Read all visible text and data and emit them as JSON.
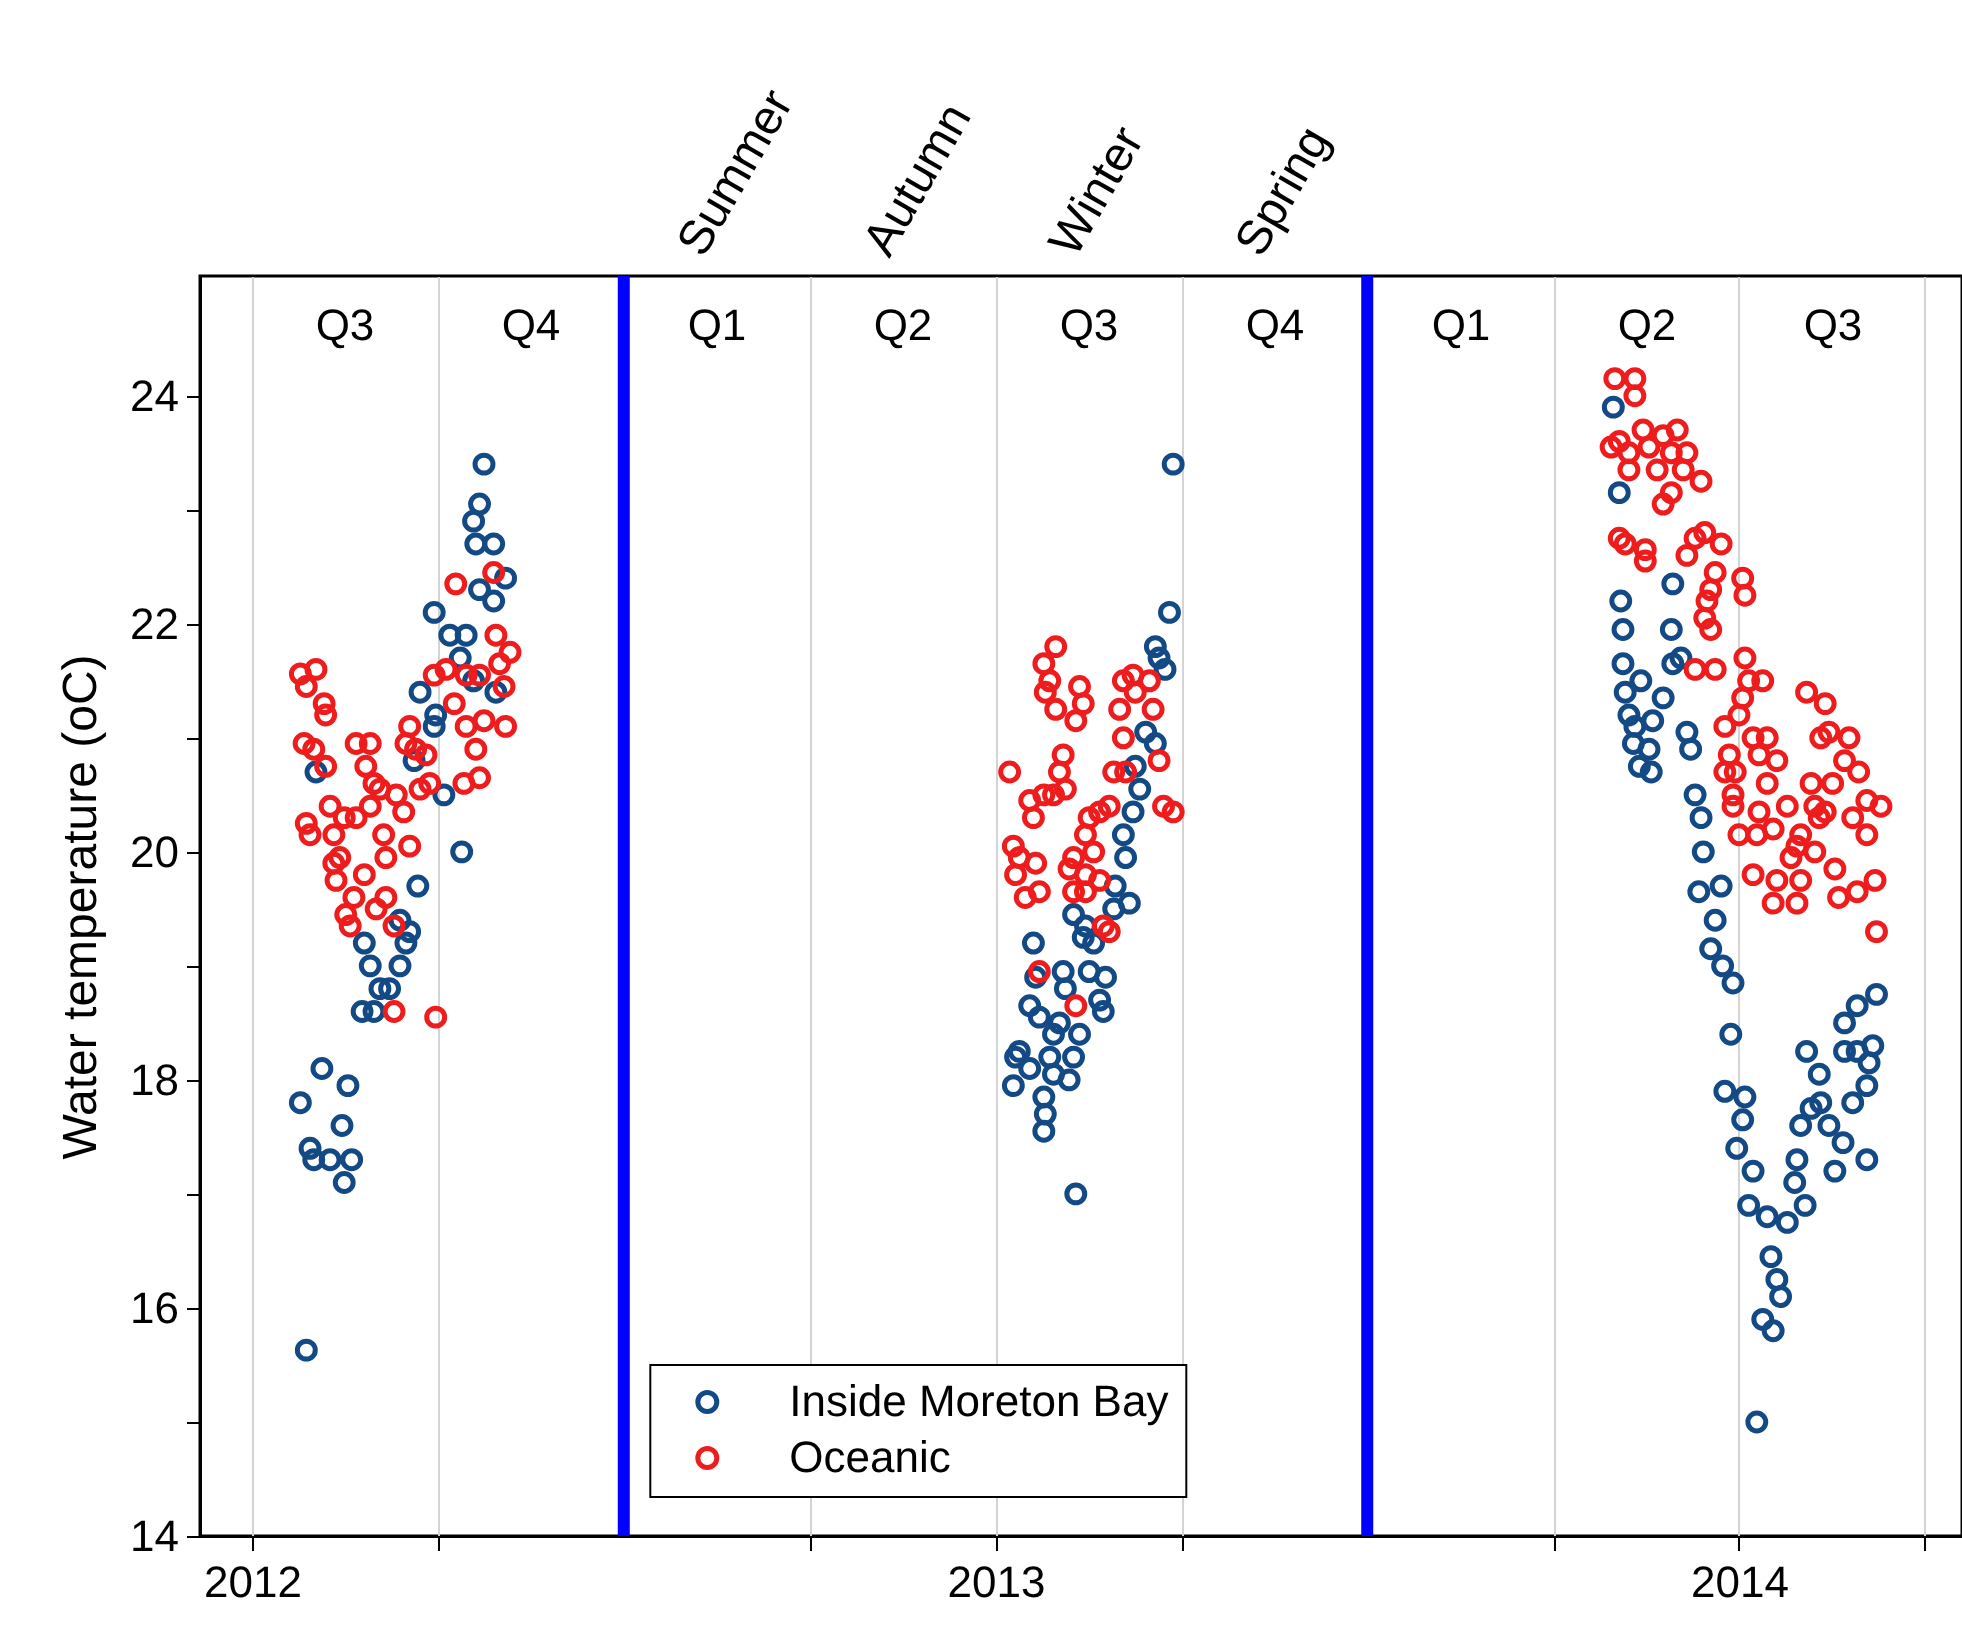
{
  "chart_data": {
    "type": "scatter",
    "ylabel": "Water temperature (oC)",
    "xlim": [
      2011.93,
      2014.3
    ],
    "ylim": [
      14,
      25.05
    ],
    "xticks": [
      2012,
      {
        "value": 2012.25,
        "label": null
      },
      {
        "value": 2012.75,
        "label": null
      },
      2013,
      {
        "value": 2013.25,
        "label": null
      },
      {
        "value": 2013.75,
        "label": null
      },
      2014,
      {
        "value": 2014.25,
        "label": null
      }
    ],
    "yticks": [
      14,
      {
        "value": 15,
        "label": null
      },
      16,
      {
        "value": 17,
        "label": null
      },
      18,
      {
        "value": 19,
        "label": null
      },
      20,
      {
        "value": 21,
        "label": null
      },
      22,
      {
        "value": 23,
        "label": null
      },
      24
    ],
    "grid": "x",
    "legend": "bottom",
    "marker": "circle",
    "ref_lines": [
      {
        "axis": "x",
        "value": 2012.5,
        "color": "#0000ff"
      },
      {
        "axis": "x",
        "value": 2013.5,
        "color": "#0000ff"
      }
    ],
    "annotations": [
      "Summer",
      "Autumn",
      "Winter",
      "Spring",
      "Q3",
      "Q4",
      "Q1",
      "Q2",
      "Q3",
      "Q4",
      "Q1",
      "Q2",
      "Q3"
    ],
    "series": [
      {
        "name": "Inside Moreton Bay",
        "color": "#134a85",
        "x": [
          2012.073,
          2012.065,
          2012.094,
          2012.129,
          2012.078,
          2012.083,
          2012.105,
          2012.124,
          2012.134,
          2012.121,
          2012.086,
          2012.151,
          2012.159,
          2012.172,
          2012.148,
          2012.164,
          2012.185,
          2012.199,
          2012.207,
          2012.199,
          2012.212,
          2012.223,
          2012.282,
          2012.226,
          2012.247,
          2012.245,
          2012.218,
          2012.258,
          2012.245,
          2012.266,
          2012.288,
          2012.28,
          2012.306,
          2012.325,
          2012.341,
          2012.312,
          2012.306,
          2012.298,
          2012.301,
          2012.325,
          2012.328,
          2012.298,
          2013.239,
          2013.234,
          2013.215,
          2013.22,
          2013.228,
          2013.202,
          2013.215,
          2013.188,
          2013.194,
          2013.185,
          2013.172,
          2013.175,
          2013.161,
          2013.18,
          2013.159,
          2013.105,
          2013.121,
          2013.118,
          2013.132,
          2013.051,
          2013.054,
          2013.091,
          2013.094,
          2013.126,
          2013.148,
          2013.14,
          2013.145,
          2013.046,
          2013.059,
          2013.086,
          2013.078,
          2013.113,
          2013.032,
          2013.027,
          2013.046,
          2013.073,
          2013.078,
          2013.105,
          2013.024,
          2013.065,
          2013.067,
          2013.065,
          2013.099,
          2013.108,
          2013.831,
          2013.839,
          2013.911,
          2013.841,
          2013.844,
          2013.909,
          2013.844,
          2013.911,
          2013.922,
          2013.847,
          2013.868,
          2013.898,
          2013.852,
          2013.86,
          2013.884,
          2013.858,
          2013.879,
          2013.866,
          2013.882,
          2013.93,
          2013.935,
          2013.941,
          2013.949,
          2013.952,
          2013.946,
          2013.976,
          2013.968,
          2013.962,
          2013.978,
          2013.992,
          2013.989,
          2013.981,
          2014.008,
          2014.005,
          2013.997,
          2014.019,
          2014.013,
          2014.038,
          2014.043,
          2014.051,
          2014.056,
          2014.032,
          2014.046,
          2014.024,
          2014.065,
          2014.089,
          2014.075,
          2014.078,
          2014.083,
          2014.097,
          2014.11,
          2014.121,
          2014.129,
          2014.14,
          2014.153,
          2014.172,
          2014.091,
          2014.108,
          2014.142,
          2014.142,
          2014.159,
          2014.185,
          2014.18,
          2014.175,
          2014.172,
          2014.159
        ],
        "values": [
          15.63,
          17.8,
          18.1,
          17.95,
          17.4,
          17.3,
          17.3,
          17.1,
          17.3,
          17.6,
          20.7,
          19.2,
          19.0,
          18.8,
          18.6,
          18.6,
          18.8,
          19.0,
          19.2,
          19.4,
          19.3,
          19.7,
          20.0,
          21.4,
          21.2,
          21.1,
          20.8,
          20.5,
          22.1,
          21.9,
          21.9,
          21.7,
          22.3,
          22.2,
          22.4,
          23.4,
          23.05,
          22.9,
          22.7,
          22.7,
          21.4,
          21.5,
          23.4,
          22.1,
          21.8,
          21.7,
          21.6,
          21.05,
          20.95,
          20.75,
          20.55,
          20.35,
          20.15,
          19.95,
          19.7,
          19.55,
          19.5,
          19.45,
          19.35,
          19.25,
          19.2,
          19.2,
          18.9,
          18.95,
          18.8,
          18.95,
          18.9,
          18.7,
          18.6,
          18.65,
          18.55,
          18.5,
          18.4,
          18.4,
          18.25,
          18.2,
          18.1,
          18.2,
          18.05,
          18.2,
          17.95,
          17.85,
          17.7,
          17.55,
          18.0,
          17.0,
          23.9,
          23.15,
          22.35,
          22.2,
          21.95,
          21.95,
          21.65,
          21.65,
          21.7,
          21.4,
          21.5,
          21.35,
          21.2,
          21.1,
          21.15,
          20.95,
          20.9,
          20.75,
          20.7,
          21.05,
          20.9,
          20.5,
          20.3,
          20.0,
          19.65,
          19.7,
          19.4,
          19.15,
          19.0,
          18.85,
          18.4,
          17.9,
          17.85,
          17.65,
          17.4,
          17.2,
          16.9,
          16.8,
          16.45,
          16.25,
          16.1,
          15.9,
          15.8,
          15.0,
          16.75,
          16.9,
          17.1,
          17.3,
          17.6,
          17.75,
          17.8,
          17.6,
          17.2,
          17.45,
          17.8,
          17.3,
          18.25,
          18.05,
          18.25,
          18.5,
          18.65,
          18.75,
          18.3,
          18.15,
          17.95,
          18.25
        ]
      },
      {
        "name": "Oceanic",
        "color": "#ee1c1c",
        "x": [
          2012.065,
          2012.086,
          2012.073,
          2012.097,
          2012.099,
          2012.07,
          2012.083,
          2012.099,
          2012.073,
          2012.078,
          2012.105,
          2012.124,
          2012.11,
          2012.14,
          2012.11,
          2012.118,
          2012.113,
          2012.151,
          2012.137,
          2012.126,
          2012.132,
          2012.167,
          2012.18,
          2012.191,
          2012.177,
          2012.18,
          2012.14,
          2012.159,
          2012.153,
          2012.164,
          2012.172,
          2012.159,
          2012.194,
          2012.204,
          2012.212,
          2012.191,
          2012.247,
          2012.212,
          2012.207,
          2012.22,
          2012.234,
          2012.226,
          2012.239,
          2012.274,
          2012.325,
          2012.245,
          2012.261,
          2012.288,
          2012.306,
          2012.333,
          2012.347,
          2012.328,
          2012.272,
          2012.288,
          2012.312,
          2012.341,
          2012.301,
          2012.306,
          2012.285,
          2012.339,
          2013.081,
          2013.065,
          2013.073,
          2013.067,
          2013.081,
          2013.113,
          2013.118,
          2013.108,
          2013.172,
          2013.185,
          2013.207,
          2013.167,
          2013.188,
          2013.212,
          2013.172,
          2013.22,
          2013.159,
          2013.175,
          2013.226,
          2013.239,
          2013.019,
          2013.091,
          2013.086,
          2013.094,
          2013.065,
          2013.046,
          2013.051,
          2013.078,
          2013.024,
          2013.032,
          2013.054,
          2013.027,
          2013.04,
          2013.059,
          2013.126,
          2013.14,
          2013.153,
          2013.121,
          2013.132,
          2013.105,
          2013.099,
          2013.121,
          2013.105,
          2013.121,
          2013.14,
          2013.145,
          2013.153,
          2013.059,
          2013.108,
          2013.833,
          2013.86,
          2013.86,
          2013.828,
          2013.839,
          2013.852,
          2013.871,
          2013.879,
          2013.898,
          2013.917,
          2013.909,
          2013.93,
          2013.852,
          2013.89,
          2013.925,
          2013.949,
          2013.909,
          2013.898,
          2013.839,
          2013.847,
          2013.874,
          2013.874,
          2013.93,
          2013.941,
          2013.954,
          2013.976,
          2013.968,
          2013.962,
          2014.005,
          2014.008,
          2013.957,
          2013.954,
          2013.962,
          2013.941,
          2013.968,
          2014.008,
          2014.013,
          2014.032,
          2014.005,
          2014.0,
          2013.981,
          2014.019,
          2014.038,
          2013.987,
          2014.027,
          2014.051,
          2013.981,
          2013.995,
          2013.992,
          2013.992,
          2014.038,
          2014.027,
          2014.065,
          2014.0,
          2014.024,
          2014.046,
          2014.019,
          2014.051,
          2014.046,
          2014.078,
          2014.083,
          2014.07,
          2014.078,
          2014.083,
          2014.102,
          2014.091,
          2014.116,
          2014.11,
          2014.121,
          2014.148,
          2014.142,
          2014.161,
          2014.097,
          2014.126,
          2014.102,
          2014.116,
          2014.108,
          2014.153,
          2014.172,
          2014.191,
          2014.172,
          2014.129,
          2014.134,
          2014.159,
          2014.183,
          2014.185
        ],
        "values": [
          21.56,
          21.6,
          21.45,
          21.3,
          21.2,
          20.95,
          20.9,
          20.75,
          20.25,
          20.15,
          20.4,
          20.3,
          20.15,
          20.3,
          19.9,
          19.95,
          19.75,
          19.8,
          19.6,
          19.45,
          19.35,
          19.5,
          19.6,
          19.35,
          20.15,
          19.95,
          20.95,
          20.95,
          20.75,
          20.6,
          20.55,
          20.4,
          20.5,
          20.35,
          20.05,
          18.6,
          18.55,
          21.1,
          20.95,
          20.9,
          20.85,
          20.55,
          20.6,
          22.35,
          22.45,
          21.55,
          21.6,
          21.55,
          21.55,
          21.65,
          21.75,
          21.9,
          21.3,
          21.1,
          21.15,
          21.1,
          20.9,
          20.65,
          20.6,
          21.45,
          21.8,
          21.65,
          21.5,
          21.4,
          21.25,
          21.45,
          21.3,
          21.15,
          21.5,
          21.55,
          21.5,
          21.25,
          21.4,
          21.25,
          21.0,
          20.8,
          20.7,
          20.7,
          20.4,
          20.35,
          20.7,
          20.85,
          20.7,
          20.55,
          20.5,
          20.45,
          20.3,
          20.5,
          20.05,
          19.95,
          19.9,
          19.8,
          19.6,
          19.65,
          20.3,
          20.35,
          20.4,
          20.15,
          20.0,
          19.95,
          19.85,
          19.8,
          19.65,
          19.65,
          19.75,
          19.35,
          19.3,
          18.95,
          18.65,
          24.15,
          24.15,
          24.0,
          23.55,
          23.6,
          23.5,
          23.7,
          23.55,
          23.65,
          23.7,
          23.5,
          23.5,
          23.35,
          23.35,
          23.35,
          23.25,
          23.15,
          23.05,
          22.75,
          22.7,
          22.65,
          22.55,
          22.6,
          22.75,
          22.8,
          22.7,
          22.45,
          22.3,
          22.4,
          22.25,
          22.2,
          22.05,
          21.95,
          21.6,
          21.6,
          21.7,
          21.5,
          21.5,
          21.35,
          21.2,
          21.1,
          21.0,
          21.0,
          20.85,
          20.85,
          20.8,
          20.7,
          20.7,
          20.5,
          20.4,
          20.6,
          20.35,
          20.4,
          20.15,
          20.15,
          20.2,
          19.8,
          19.75,
          19.55,
          19.55,
          19.75,
          19.95,
          20.05,
          20.15,
          20.0,
          21.4,
          21.3,
          21.0,
          21.05,
          21.0,
          20.8,
          20.7,
          20.6,
          20.6,
          20.4,
          20.35,
          20.3,
          20.3,
          20.45,
          20.4,
          20.15,
          19.85,
          19.6,
          19.65,
          19.75,
          19.3
        ]
      }
    ]
  }
}
